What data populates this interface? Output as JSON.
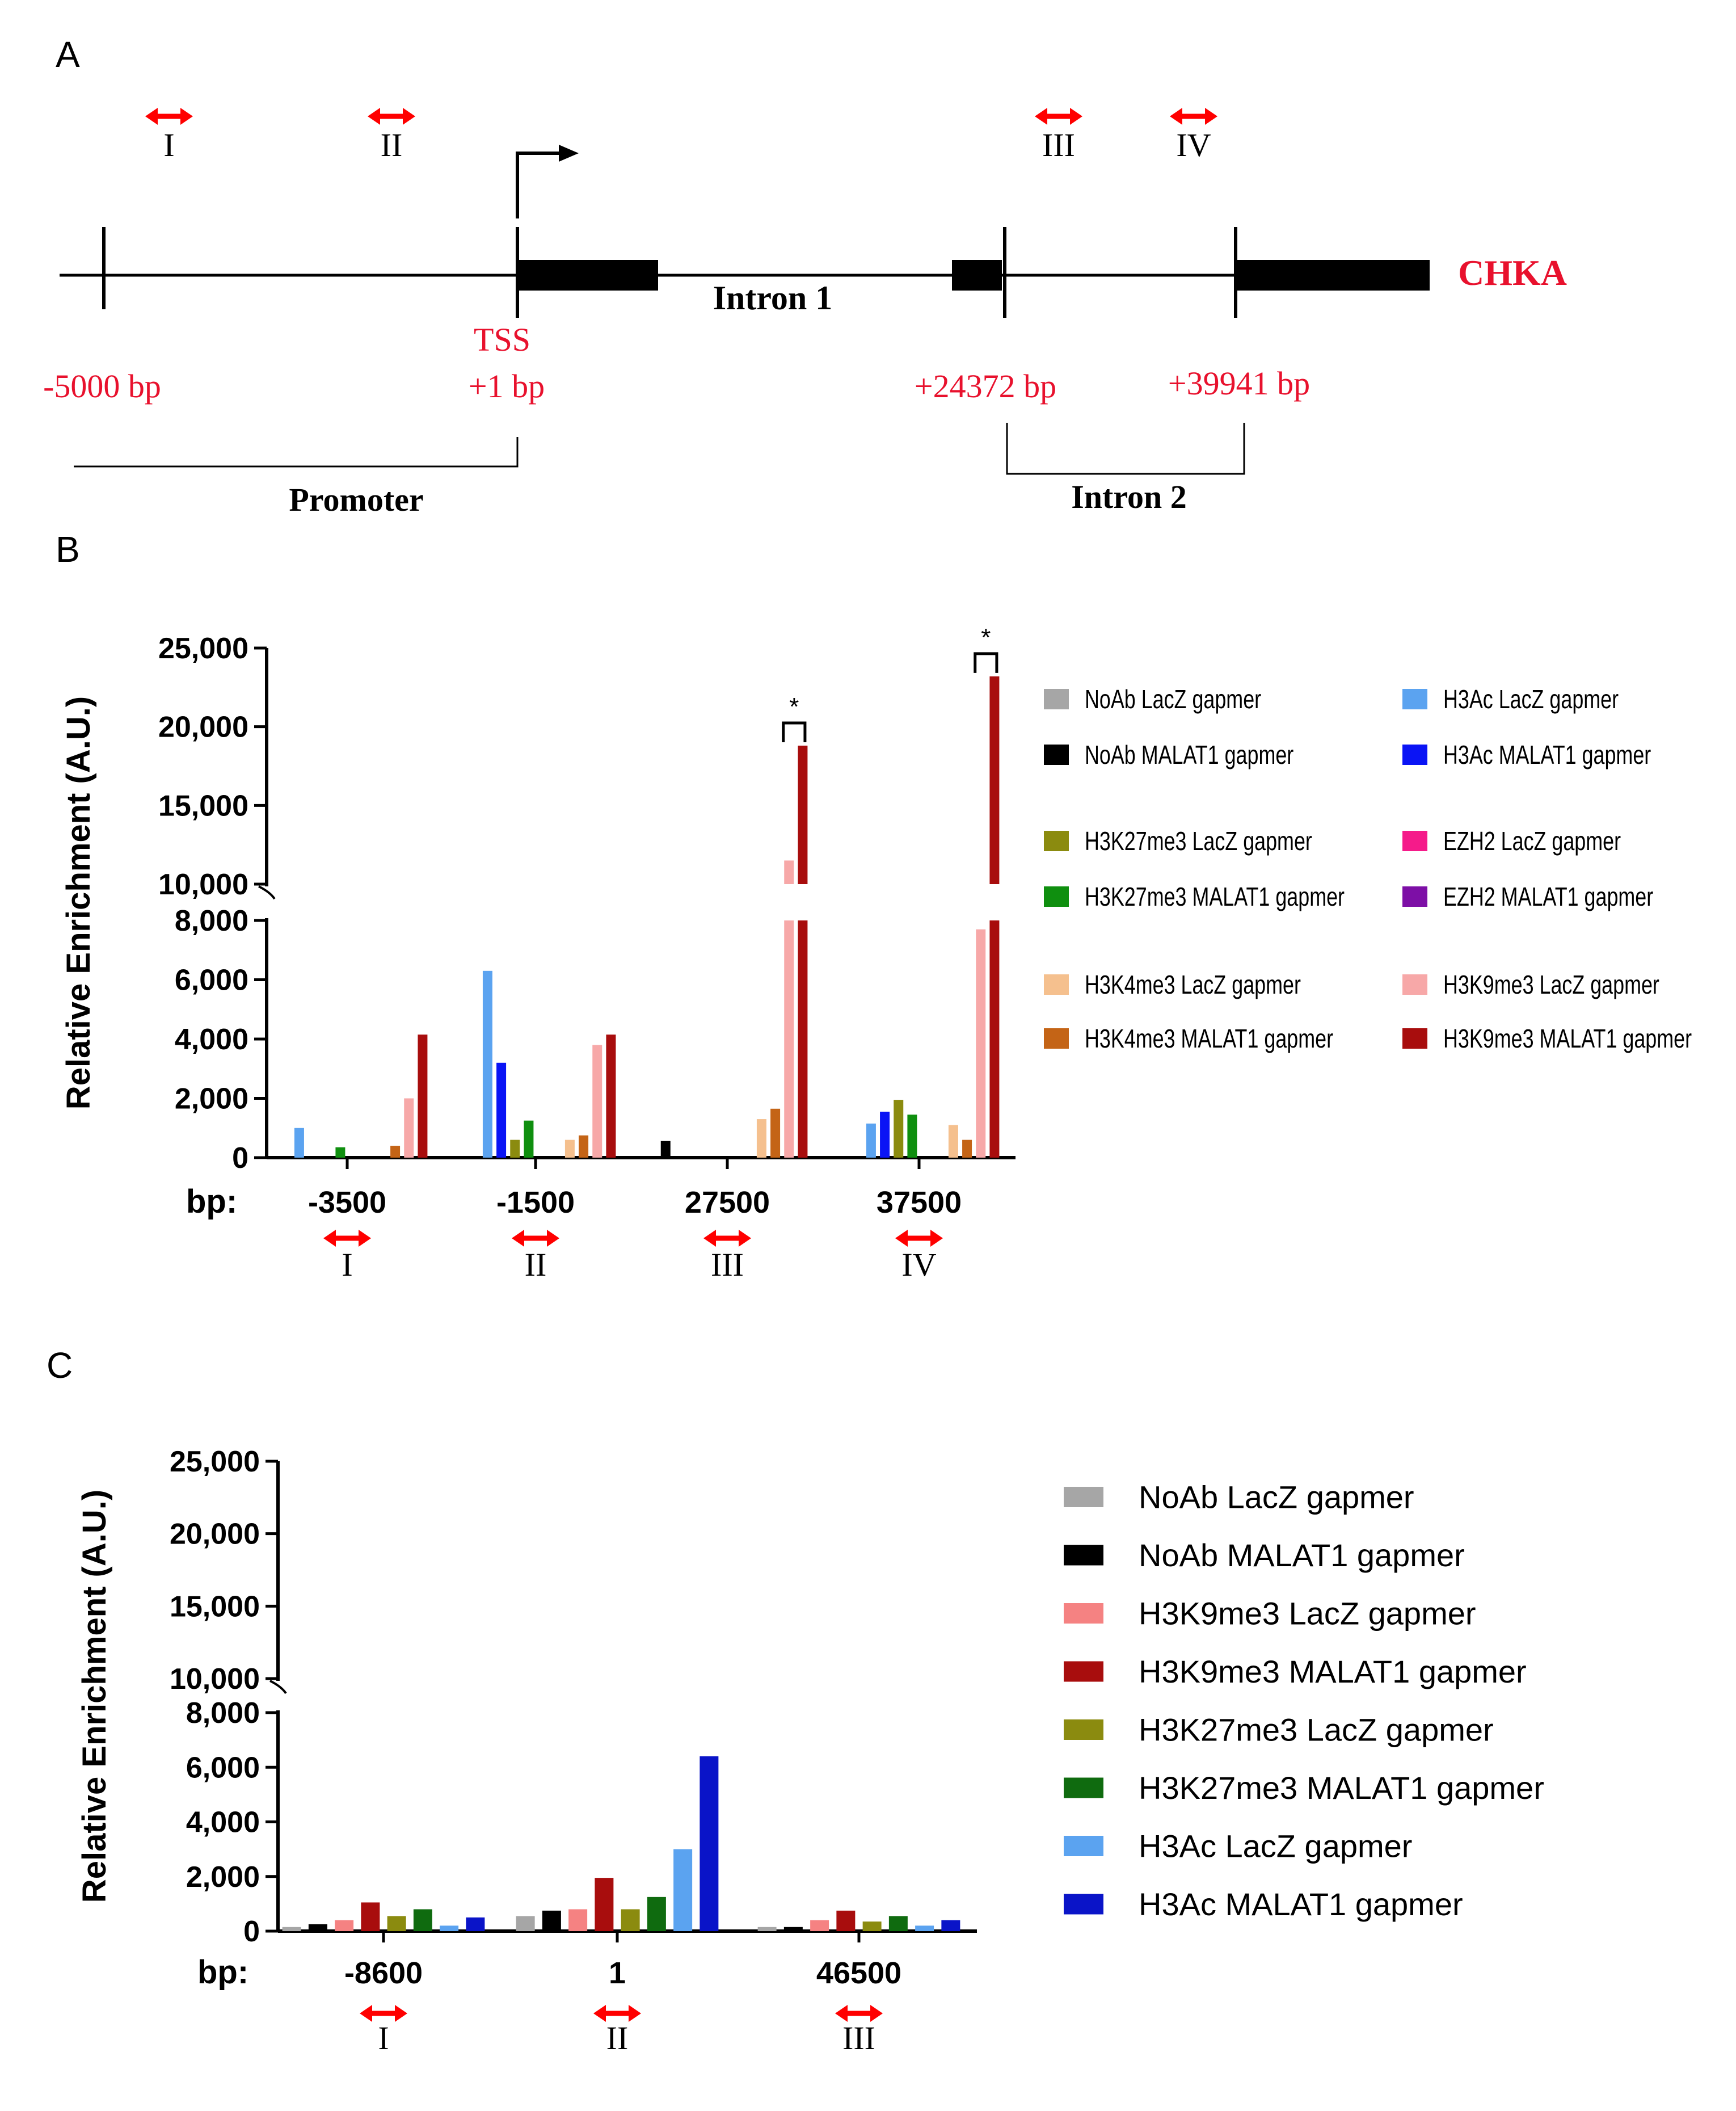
{
  "panel_labels": {
    "a": "A",
    "b": "B",
    "c": "C"
  },
  "colors": {
    "primer_arrow": "#ff0000",
    "gene_label": "#e8112d",
    "coordinate_label": "#e8112d"
  },
  "gene_map": {
    "gene_name": "CHKA",
    "tss_label": "TSS",
    "coordinates": [
      "-5000 bp",
      "+1 bp",
      "+24372 bp",
      "+39941 bp"
    ],
    "region_labels": {
      "intron1": "Intron 1",
      "promoter": "Promoter",
      "intron2": "Intron 2"
    },
    "primers": [
      "I",
      "II",
      "III",
      "IV"
    ]
  },
  "chart_data": [
    {
      "id": "B",
      "type": "bar",
      "ylabel": "Relative Enrichment (A.U.)",
      "xlabel_prefix": "bp:",
      "categories": [
        "-3500",
        "-1500",
        "27500",
        "37500"
      ],
      "primer_labels": [
        "I",
        "II",
        "III",
        "IV"
      ],
      "axis_break": {
        "lower": [
          0,
          8000
        ],
        "upper": [
          10000,
          25000
        ]
      },
      "yticks_lower": [
        "0",
        "2,000",
        "4,000",
        "6,000",
        "8,000"
      ],
      "yticks_upper": [
        "10,000",
        "15,000",
        "20,000",
        "25,000"
      ],
      "significance": [
        {
          "category": "27500",
          "between": [
            "H3K9me3 LacZ gapmer",
            "H3K9me3 MALAT1 gapmer"
          ],
          "label": "*"
        },
        {
          "category": "37500",
          "between": [
            "H3K9me3 LacZ gapmer",
            "H3K9me3 MALAT1 gapmer"
          ],
          "label": "*"
        }
      ],
      "legend_placement": "right",
      "series": [
        {
          "name": "NoAb LacZ gapmer",
          "color": "#a6a6a6",
          "values": [
            0,
            0,
            0,
            0
          ]
        },
        {
          "name": "NoAb MALAT1 gapmer",
          "color": "#000000",
          "values": [
            0,
            0,
            560,
            0
          ]
        },
        {
          "name": "H3Ac LacZ gapmer",
          "color": "#5ba3f0",
          "values": [
            1000,
            6300,
            0,
            1150
          ]
        },
        {
          "name": "H3Ac MALAT1 gapmer",
          "color": "#0a14f5",
          "values": [
            0,
            3200,
            0,
            1550
          ]
        },
        {
          "name": "H3K27me3 LacZ gapmer",
          "color": "#8b8b0f",
          "values": [
            0,
            600,
            0,
            1950
          ]
        },
        {
          "name": "H3K27me3 MALAT1 gapmer",
          "color": "#0f8f0f",
          "values": [
            350,
            1250,
            0,
            1450
          ]
        },
        {
          "name": "EZH2 LacZ gapmer",
          "color": "#f51b8a",
          "values": [
            0,
            0,
            0,
            0
          ]
        },
        {
          "name": "EZH2 MALAT1 gapmer",
          "color": "#7d0fa6",
          "values": [
            0,
            0,
            0,
            0
          ]
        },
        {
          "name": "H3K4me3 LacZ gapmer",
          "color": "#f5c08e",
          "values": [
            0,
            600,
            1300,
            1100
          ]
        },
        {
          "name": "H3K4me3 MALAT1 gapmer",
          "color": "#c46416",
          "values": [
            400,
            750,
            1650,
            600
          ]
        },
        {
          "name": "H3K9me3 LacZ gapmer",
          "color": "#f7a8a8",
          "values": [
            2000,
            3800,
            11500,
            7700
          ]
        },
        {
          "name": "H3K9me3 MALAT1 gapmer",
          "color": "#a80d0d",
          "values": [
            4150,
            4150,
            18800,
            23200
          ]
        }
      ]
    },
    {
      "id": "C",
      "type": "bar",
      "ylabel": "Relative Enrichment (A.U.)",
      "xlabel_prefix": "bp:",
      "categories": [
        "-8600",
        "1",
        "46500"
      ],
      "primer_labels": [
        "I",
        "II",
        "III"
      ],
      "axis_break": {
        "lower": [
          0,
          8000
        ],
        "upper": [
          10000,
          25000
        ]
      },
      "yticks_lower": [
        "0",
        "2,000",
        "4,000",
        "6,000",
        "8,000"
      ],
      "yticks_upper": [
        "10,000",
        "15,000",
        "20,000",
        "25,000"
      ],
      "legend_placement": "right",
      "series": [
        {
          "name": "NoAb LacZ gapmer",
          "color": "#a6a6a6",
          "values": [
            150,
            550,
            150
          ]
        },
        {
          "name": "NoAb MALAT1 gapmer",
          "color": "#000000",
          "values": [
            250,
            750,
            150
          ]
        },
        {
          "name": "H3K9me3 LacZ gapmer",
          "color": "#f58282",
          "values": [
            400,
            800,
            400
          ]
        },
        {
          "name": "H3K9me3 MALAT1 gapmer",
          "color": "#a80d0d",
          "values": [
            1050,
            1950,
            750
          ]
        },
        {
          "name": "H3K27me3 LacZ gapmer",
          "color": "#8b8b0f",
          "values": [
            550,
            800,
            350
          ]
        },
        {
          "name": "H3K27me3 MALAT1 gapmer",
          "color": "#0f6b0f",
          "values": [
            800,
            1250,
            550
          ]
        },
        {
          "name": "H3Ac LacZ gapmer",
          "color": "#5ba3f0",
          "values": [
            200,
            3000,
            200
          ]
        },
        {
          "name": "H3Ac MALAT1 gapmer",
          "color": "#0a14c8",
          "values": [
            500,
            6400,
            400
          ]
        }
      ]
    }
  ]
}
